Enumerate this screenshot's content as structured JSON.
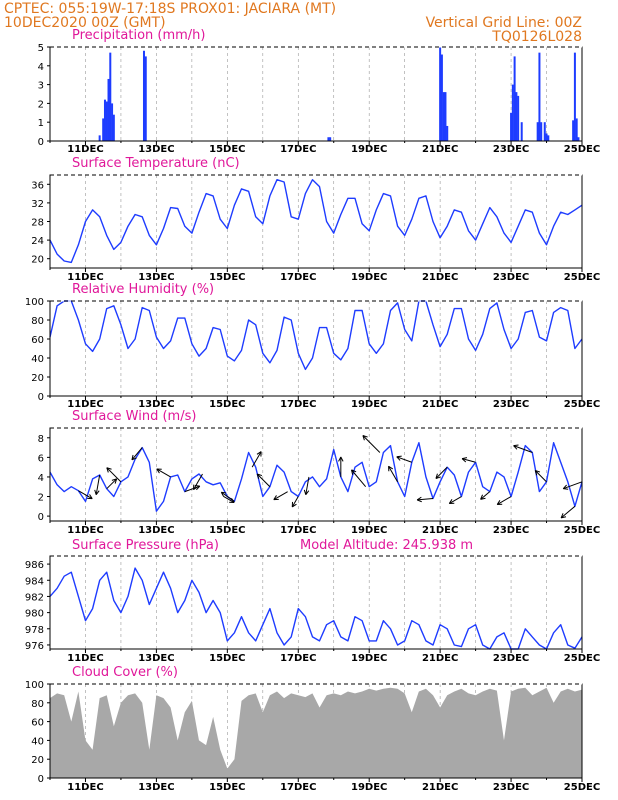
{
  "header": {
    "line1_left": "CPTEC:   055:19W-17:18S   PROX01: JACIARA (MT)",
    "line2_left": "10DEC2020 00Z (GMT)",
    "line2_right": "Vertical Grid Line: 00Z",
    "line3_right": "TQ0126L028"
  },
  "colors": {
    "header": "#e07820",
    "panel_title": "#e0189a",
    "series": "#1e3cff",
    "cloud": "#a8a8a8",
    "arrow": "#000000"
  },
  "chart_data": [
    {
      "type": "bar",
      "title": "Precipitation (mm/h)",
      "ylim": [
        0,
        5
      ],
      "yticks": [
        0,
        1,
        2,
        3,
        4,
        5
      ],
      "xlim_days": [
        0,
        15
      ],
      "x_tick_labels": [
        "11DEC",
        "13DEC",
        "15DEC",
        "17DEC",
        "19DEC",
        "21DEC",
        "23DEC",
        "25DEC"
      ],
      "x_tick_days": [
        1,
        3,
        5,
        7,
        9,
        11,
        13,
        15
      ],
      "x": [
        1.4,
        1.5,
        1.55,
        1.6,
        1.65,
        1.7,
        1.75,
        1.8,
        2.65,
        2.7,
        7.85,
        7.9,
        11.0,
        11.05,
        11.1,
        11.15,
        11.2,
        13.0,
        13.05,
        13.1,
        13.15,
        13.2,
        13.3,
        13.75,
        13.8,
        13.85,
        13.95,
        14.0,
        14.05,
        14.75,
        14.8,
        14.85,
        14.9
      ],
      "values": [
        0.3,
        1.2,
        2.2,
        2.1,
        3.3,
        4.7,
        2.0,
        1.4,
        4.8,
        4.5,
        0.2,
        0.2,
        5.0,
        4.6,
        2.6,
        2.6,
        0.8,
        1.5,
        3.0,
        4.5,
        2.6,
        2.4,
        1.0,
        1.0,
        4.7,
        1.0,
        1.0,
        0.4,
        0.3,
        1.1,
        4.7,
        1.2,
        0.2
      ]
    },
    {
      "type": "line",
      "title": "Surface Temperature (nC)",
      "ylim": [
        18,
        38
      ],
      "yticks": [
        20,
        24,
        28,
        32,
        36
      ],
      "x_tick_labels": [
        "11DEC",
        "13DEC",
        "15DEC",
        "17DEC",
        "19DEC",
        "21DEC",
        "23DEC",
        "25DEC"
      ],
      "x": [
        0,
        0.2,
        0.4,
        0.6,
        0.8,
        1.0,
        1.2,
        1.4,
        1.6,
        1.8,
        2.0,
        2.2,
        2.4,
        2.6,
        2.8,
        3.0,
        3.2,
        3.4,
        3.6,
        3.8,
        4.0,
        4.2,
        4.4,
        4.6,
        4.8,
        5.0,
        5.2,
        5.4,
        5.6,
        5.8,
        6.0,
        6.2,
        6.4,
        6.6,
        6.8,
        7.0,
        7.2,
        7.4,
        7.6,
        7.8,
        8.0,
        8.2,
        8.4,
        8.6,
        8.8,
        9.0,
        9.2,
        9.4,
        9.6,
        9.8,
        10.0,
        10.2,
        10.4,
        10.6,
        10.8,
        11.0,
        11.2,
        11.4,
        11.6,
        11.8,
        12.0,
        12.2,
        12.4,
        12.6,
        12.8,
        13.0,
        13.2,
        13.4,
        13.6,
        13.8,
        14.0,
        14.2,
        14.4,
        14.6,
        14.8,
        15.0
      ],
      "values": [
        24,
        21,
        19.5,
        19.2,
        23,
        28,
        30.5,
        29,
        25,
        22,
        23.5,
        27,
        29.5,
        29,
        25,
        23,
        26.5,
        31,
        30.8,
        27,
        25.5,
        30,
        34,
        33.5,
        28.5,
        26.5,
        31.5,
        35,
        34.5,
        29,
        27.5,
        33.5,
        37,
        36.5,
        29,
        28.5,
        34,
        37,
        35.5,
        28,
        25.5,
        29.5,
        33,
        33,
        27.5,
        26,
        30.5,
        34,
        33.5,
        27,
        25,
        28.5,
        33,
        33.5,
        28,
        24.5,
        27,
        30.5,
        30,
        26,
        24,
        27.5,
        31,
        29,
        25.5,
        23.5,
        27,
        30.5,
        30,
        25.5,
        23,
        27,
        30,
        29.5,
        30.5,
        31.5
      ]
    },
    {
      "type": "line",
      "title": "Relative Humidity (%)",
      "ylim": [
        0,
        100
      ],
      "yticks": [
        0,
        20,
        40,
        60,
        80,
        100
      ],
      "x_tick_labels": [
        "11DEC",
        "13DEC",
        "15DEC",
        "17DEC",
        "19DEC",
        "21DEC",
        "23DEC",
        "25DEC"
      ],
      "x": [
        0,
        0.2,
        0.4,
        0.6,
        0.8,
        1.0,
        1.2,
        1.4,
        1.6,
        1.8,
        2.0,
        2.2,
        2.4,
        2.6,
        2.8,
        3.0,
        3.2,
        3.4,
        3.6,
        3.8,
        4.0,
        4.2,
        4.4,
        4.6,
        4.8,
        5.0,
        5.2,
        5.4,
        5.6,
        5.8,
        6.0,
        6.2,
        6.4,
        6.6,
        6.8,
        7.0,
        7.2,
        7.4,
        7.6,
        7.8,
        8.0,
        8.2,
        8.4,
        8.6,
        8.8,
        9.0,
        9.2,
        9.4,
        9.6,
        9.8,
        10.0,
        10.2,
        10.4,
        10.6,
        10.8,
        11.0,
        11.2,
        11.4,
        11.6,
        11.8,
        12.0,
        12.2,
        12.4,
        12.6,
        12.8,
        13.0,
        13.2,
        13.4,
        13.6,
        13.8,
        14.0,
        14.2,
        14.4,
        14.6,
        14.8,
        15.0
      ],
      "values": [
        62,
        95,
        100,
        100,
        80,
        55,
        47,
        60,
        92,
        95,
        75,
        50,
        60,
        93,
        90,
        62,
        50,
        58,
        82,
        82,
        55,
        42,
        50,
        72,
        70,
        42,
        37,
        48,
        80,
        75,
        45,
        35,
        48,
        83,
        80,
        45,
        28,
        40,
        72,
        72,
        45,
        38,
        50,
        90,
        90,
        55,
        45,
        55,
        90,
        98,
        70,
        58,
        100,
        100,
        75,
        52,
        65,
        92,
        92,
        60,
        48,
        65,
        92,
        98,
        70,
        50,
        60,
        88,
        90,
        62,
        58,
        88,
        93,
        90,
        50,
        60
      ]
    },
    {
      "type": "line",
      "title": "Surface Wind (m/s)",
      "ylim": [
        -0.5,
        9
      ],
      "yticks": [
        0,
        2,
        4,
        6,
        8
      ],
      "x_tick_labels": [
        "11DEC",
        "13DEC",
        "15DEC",
        "17DEC",
        "19DEC",
        "21DEC",
        "23DEC",
        "25DEC"
      ],
      "x": [
        0,
        0.2,
        0.4,
        0.6,
        0.8,
        1.0,
        1.2,
        1.4,
        1.6,
        1.8,
        2.0,
        2.2,
        2.4,
        2.6,
        2.8,
        3.0,
        3.2,
        3.4,
        3.6,
        3.8,
        4.0,
        4.2,
        4.4,
        4.6,
        4.8,
        5.0,
        5.2,
        5.4,
        5.6,
        5.8,
        6.0,
        6.2,
        6.4,
        6.6,
        6.8,
        7.0,
        7.2,
        7.4,
        7.6,
        7.8,
        8.0,
        8.2,
        8.4,
        8.6,
        8.8,
        9.0,
        9.2,
        9.4,
        9.6,
        9.8,
        10.0,
        10.2,
        10.4,
        10.6,
        10.8,
        11.0,
        11.2,
        11.4,
        11.6,
        11.8,
        12.0,
        12.2,
        12.4,
        12.6,
        12.8,
        13.0,
        13.2,
        13.4,
        13.6,
        13.8,
        14.0,
        14.2,
        14.4,
        14.6,
        14.8,
        15.0
      ],
      "values": [
        4.5,
        3.2,
        2.5,
        3.0,
        2.6,
        1.5,
        3.8,
        4.2,
        2.8,
        2.0,
        3.5,
        4.0,
        5.8,
        7.0,
        5.5,
        0.5,
        1.5,
        4.0,
        4.2,
        2.5,
        3.8,
        4.3,
        3.5,
        3.2,
        3.4,
        2.0,
        1.5,
        3.8,
        6.5,
        5.0,
        2.0,
        3.0,
        5.2,
        4.5,
        2.5,
        2.0,
        3.5,
        4.0,
        3.0,
        3.8,
        6.8,
        4.0,
        2.5,
        5.0,
        5.5,
        3.0,
        3.5,
        6.5,
        7.2,
        3.5,
        2.0,
        5.5,
        7.5,
        4.0,
        1.8,
        3.5,
        5.0,
        4.2,
        2.0,
        4.5,
        5.5,
        3.0,
        2.5,
        4.5,
        4.0,
        2.0,
        4.5,
        7.2,
        6.5,
        2.5,
        3.5,
        7.5,
        5.5,
        3.5,
        1.0,
        3.5
      ],
      "arrows": [
        {
          "x": 0.8,
          "speed": 2.5,
          "angle": 30
        },
        {
          "x": 1.4,
          "speed": 3.5,
          "angle": 100
        },
        {
          "x": 1.6,
          "speed": 2.0,
          "angle": 315
        },
        {
          "x": 2.0,
          "speed": 3.5,
          "angle": 225
        },
        {
          "x": 2.6,
          "speed": 2.5,
          "angle": 130
        },
        {
          "x": 3.4,
          "speed": 2.5,
          "angle": 210
        },
        {
          "x": 3.8,
          "speed": 2.5,
          "angle": 340
        },
        {
          "x": 4.3,
          "speed": 3.0,
          "angle": 120
        },
        {
          "x": 4.9,
          "speed": 1.5,
          "angle": 30
        },
        {
          "x": 5.2,
          "speed": 2.5,
          "angle": 215
        },
        {
          "x": 5.7,
          "speed": 3.0,
          "angle": 300
        },
        {
          "x": 6.2,
          "speed": 3.0,
          "angle": 225
        },
        {
          "x": 6.7,
          "speed": 2.5,
          "angle": 150
        },
        {
          "x": 7.0,
          "speed": 1.5,
          "angle": 120
        },
        {
          "x": 7.3,
          "speed": 3.0,
          "angle": 100
        },
        {
          "x": 8.2,
          "speed": 3.5,
          "angle": 270
        },
        {
          "x": 8.9,
          "speed": 4.0,
          "angle": 230
        },
        {
          "x": 9.3,
          "speed": 4.5,
          "angle": 225
        },
        {
          "x": 9.8,
          "speed": 3.0,
          "angle": 240
        },
        {
          "x": 10.2,
          "speed": 2.5,
          "angle": 200
        },
        {
          "x": 10.8,
          "speed": 2.5,
          "angle": 175
        },
        {
          "x": 11.2,
          "speed": 2.5,
          "angle": 135
        },
        {
          "x": 11.6,
          "speed": 2.0,
          "angle": 150
        },
        {
          "x": 12.0,
          "speed": 2.0,
          "angle": 195
        },
        {
          "x": 12.4,
          "speed": 1.5,
          "angle": 140
        },
        {
          "x": 13.0,
          "speed": 2.5,
          "angle": 150
        },
        {
          "x": 13.6,
          "speed": 3.5,
          "angle": 200
        },
        {
          "x": 14.0,
          "speed": 2.5,
          "angle": 225
        },
        {
          "x": 14.8,
          "speed": 3.0,
          "angle": 140
        },
        {
          "x": 15.0,
          "speed": 3.5,
          "angle": 160
        }
      ]
    },
    {
      "type": "line",
      "title": "Surface Pressure (hPa)",
      "subtitle": "Model Altitude: 245.938  m",
      "ylim": [
        975.5,
        987
      ],
      "yticks": [
        976,
        978,
        980,
        982,
        984,
        986
      ],
      "x_tick_labels": [
        "11DEC",
        "13DEC",
        "15DEC",
        "17DEC",
        "19DEC",
        "21DEC",
        "23DEC",
        "25DEC"
      ],
      "x": [
        0,
        0.2,
        0.4,
        0.6,
        0.8,
        1.0,
        1.2,
        1.4,
        1.6,
        1.8,
        2.0,
        2.2,
        2.4,
        2.6,
        2.8,
        3.0,
        3.2,
        3.4,
        3.6,
        3.8,
        4.0,
        4.2,
        4.4,
        4.6,
        4.8,
        5.0,
        5.2,
        5.4,
        5.6,
        5.8,
        6.0,
        6.2,
        6.4,
        6.6,
        6.8,
        7.0,
        7.2,
        7.4,
        7.6,
        7.8,
        8.0,
        8.2,
        8.4,
        8.6,
        8.8,
        9.0,
        9.2,
        9.4,
        9.6,
        9.8,
        10.0,
        10.2,
        10.4,
        10.6,
        10.8,
        11.0,
        11.2,
        11.4,
        11.6,
        11.8,
        12.0,
        12.2,
        12.4,
        12.6,
        12.8,
        13.0,
        13.2,
        13.4,
        13.6,
        13.8,
        14.0,
        14.2,
        14.4,
        14.6,
        14.8,
        15.0
      ],
      "values": [
        982,
        983,
        984.5,
        985,
        982,
        979,
        980.5,
        984,
        985,
        981.5,
        980,
        982,
        985.5,
        984,
        981,
        983,
        985,
        983,
        980,
        981.5,
        984,
        982.5,
        980,
        981.5,
        980,
        976.5,
        977.5,
        979.5,
        977.5,
        976.5,
        978.5,
        980.5,
        977.5,
        976,
        977,
        980.5,
        979.5,
        977,
        976.5,
        978.5,
        979,
        977,
        976.5,
        979.5,
        979,
        976.5,
        976.5,
        979,
        978,
        976,
        976.5,
        979,
        978.5,
        976.5,
        976,
        978.5,
        978,
        976,
        975.8,
        978,
        978.5,
        976,
        975.5,
        977,
        977.5,
        975.5,
        975.5,
        978,
        977,
        976,
        975.5,
        977.5,
        978.5,
        976,
        975.6,
        977
      ]
    },
    {
      "type": "area",
      "title": "Cloud Cover (%)",
      "ylim": [
        0,
        100
      ],
      "yticks": [
        0,
        20,
        40,
        60,
        80,
        100
      ],
      "x_tick_labels": [
        "11DEC",
        "13DEC",
        "15DEC",
        "17DEC",
        "19DEC",
        "21DEC",
        "23DEC",
        "25DEC"
      ],
      "x": [
        0,
        0.2,
        0.4,
        0.6,
        0.8,
        1.0,
        1.2,
        1.4,
        1.6,
        1.8,
        2.0,
        2.2,
        2.4,
        2.6,
        2.8,
        3.0,
        3.2,
        3.4,
        3.6,
        3.8,
        4.0,
        4.2,
        4.4,
        4.6,
        4.8,
        5.0,
        5.2,
        5.4,
        5.6,
        5.8,
        6.0,
        6.2,
        6.4,
        6.6,
        6.8,
        7.0,
        7.2,
        7.4,
        7.6,
        7.8,
        8.0,
        8.2,
        8.4,
        8.6,
        8.8,
        9.0,
        9.2,
        9.4,
        9.6,
        9.8,
        10.0,
        10.2,
        10.4,
        10.6,
        10.8,
        11.0,
        11.2,
        11.4,
        11.6,
        11.8,
        12.0,
        12.2,
        12.4,
        12.6,
        12.8,
        13.0,
        13.2,
        13.4,
        13.6,
        13.8,
        14.0,
        14.2,
        14.4,
        14.6,
        14.8,
        15.0
      ],
      "values": [
        85,
        90,
        88,
        60,
        92,
        40,
        30,
        85,
        88,
        55,
        80,
        88,
        90,
        80,
        30,
        88,
        85,
        75,
        40,
        70,
        82,
        40,
        35,
        65,
        30,
        10,
        20,
        82,
        88,
        90,
        70,
        88,
        92,
        85,
        90,
        88,
        86,
        90,
        75,
        88,
        90,
        88,
        92,
        90,
        92,
        95,
        93,
        95,
        96,
        95,
        90,
        70,
        92,
        95,
        88,
        75,
        88,
        92,
        95,
        90,
        88,
        92,
        95,
        93,
        40,
        92,
        95,
        96,
        88,
        92,
        96,
        80,
        92,
        95,
        92,
        94
      ]
    }
  ]
}
